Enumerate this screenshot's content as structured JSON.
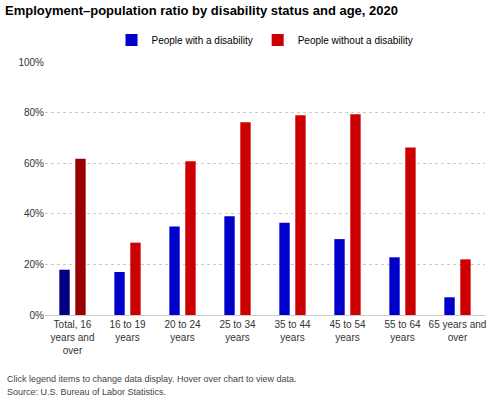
{
  "chart_data": {
    "type": "bar",
    "title": "Employment–population ratio by disability status and age, 2020",
    "categories": [
      "Total, 16 years and over",
      "16 to 19 years",
      "20 to 24 years",
      "25 to 34 years",
      "35 to 44 years",
      "45 to 54 years",
      "55 to 64 years",
      "65 years and over"
    ],
    "series": [
      {
        "name": "People with a disability",
        "color": "#0000cc",
        "colors": [
          "#000080",
          "#0000cc",
          "#0000cc",
          "#0000cc",
          "#0000cc",
          "#0000cc",
          "#0000cc",
          "#0000cc"
        ],
        "values": [
          17.9,
          17.0,
          35.0,
          39.0,
          36.5,
          30.0,
          22.8,
          7.0
        ]
      },
      {
        "name": "People without a disability",
        "color": "#cc0000",
        "colors": [
          "#990000",
          "#cc0000",
          "#cc0000",
          "#cc0000",
          "#cc0000",
          "#cc0000",
          "#cc0000",
          "#cc0000"
        ],
        "values": [
          61.8,
          28.6,
          60.8,
          76.2,
          79.0,
          79.3,
          66.2,
          22.0
        ]
      }
    ],
    "ylim": [
      0,
      100
    ],
    "yticks": [
      {
        "value": 0,
        "label": "0%"
      },
      {
        "value": 20,
        "label": "20%"
      },
      {
        "value": 40,
        "label": "40%"
      },
      {
        "value": 60,
        "label": "60%"
      },
      {
        "value": 80,
        "label": "80%"
      },
      {
        "value": 100,
        "label": "100%"
      }
    ],
    "grid": true,
    "legend": "top",
    "annotations": [
      "Click legend items to change data display. Hover over chart to view data.",
      "Source: U.S. Bureau of Labor Statistics."
    ]
  }
}
